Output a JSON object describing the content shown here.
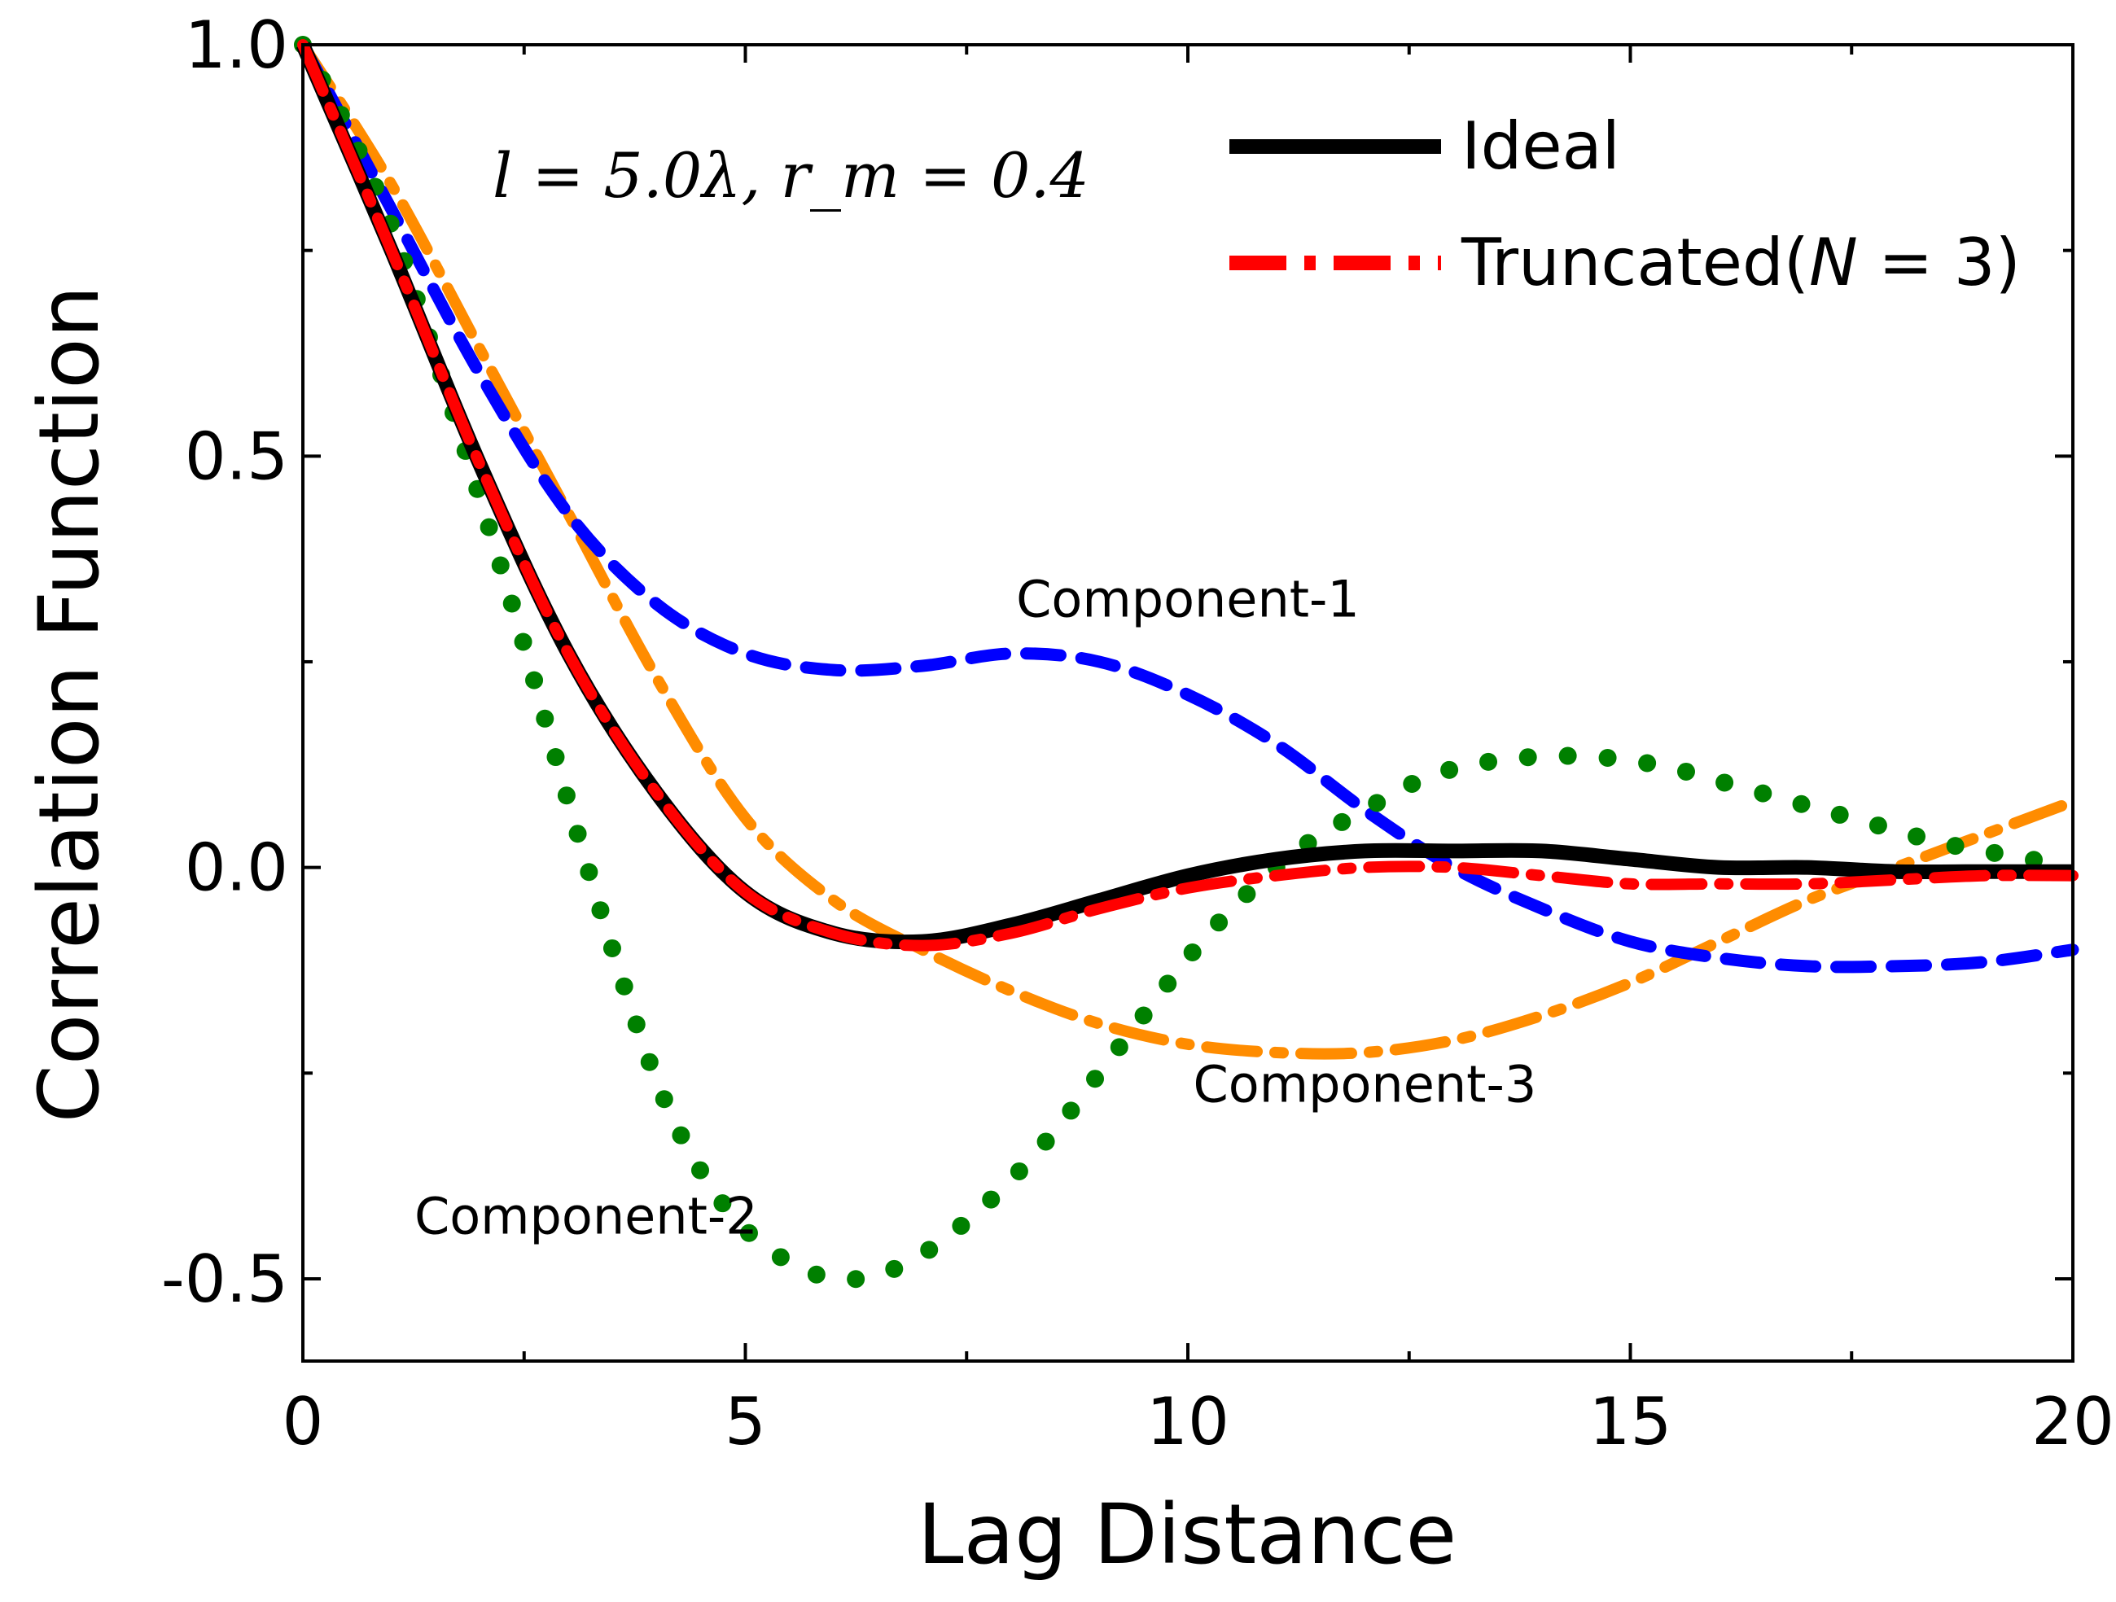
{
  "chart_data": {
    "type": "line",
    "xlabel": "Lag Distance",
    "ylabel": "Correlation Function",
    "xlim": [
      0,
      20
    ],
    "ylim": [
      -0.6,
      1.0
    ],
    "xticks": [
      0,
      5,
      10,
      15,
      20
    ],
    "xtick_labels": [
      "0",
      "5",
      "10",
      "15",
      "20"
    ],
    "yticks": [
      -0.5,
      0.0,
      0.5,
      1.0
    ],
    "ytick_labels": [
      "-0.5",
      "0.0",
      "0.5",
      "1.0"
    ],
    "grid": false,
    "legend_position": "top-right",
    "formula_annotation": "l = 5.0λ, r_m = 0.4",
    "series": [
      {
        "name": "Ideal",
        "color": "#000000",
        "style": "solid",
        "x": [
          0,
          1,
          2,
          3,
          4,
          5,
          6,
          7,
          8,
          9,
          10,
          11,
          12,
          13,
          14,
          15,
          16,
          17,
          18,
          19,
          20
        ],
        "y": [
          1.0,
          0.75,
          0.49,
          0.26,
          0.09,
          -0.03,
          -0.08,
          -0.09,
          -0.07,
          -0.04,
          -0.01,
          0.01,
          0.02,
          0.02,
          0.02,
          0.01,
          0.0,
          0.0,
          -0.005,
          -0.005,
          -0.005
        ]
      },
      {
        "name": "Truncated(N = 3)",
        "legend_prefix": "Truncated(",
        "legend_italic": "N",
        "legend_suffix": " = 3)",
        "color": "#ff0000",
        "style": "dashdot",
        "x": [
          0,
          1,
          2,
          3,
          4,
          5,
          6,
          7,
          8,
          9,
          10,
          11,
          12,
          13,
          14,
          15,
          16,
          17,
          18,
          19,
          20
        ],
        "y": [
          1.0,
          0.75,
          0.49,
          0.26,
          0.09,
          -0.03,
          -0.08,
          -0.095,
          -0.08,
          -0.05,
          -0.025,
          -0.01,
          0.0,
          0.0,
          -0.01,
          -0.02,
          -0.02,
          -0.02,
          -0.015,
          -0.01,
          -0.01
        ]
      },
      {
        "name": "Component-1",
        "color": "#0000ff",
        "style": "dashed",
        "x": [
          0,
          1,
          2,
          3,
          4,
          5,
          6,
          7,
          8,
          9,
          10,
          11,
          12,
          13,
          14,
          15,
          16,
          17,
          18,
          19,
          20
        ],
        "y": [
          1.0,
          0.8,
          0.6,
          0.43,
          0.32,
          0.26,
          0.24,
          0.245,
          0.26,
          0.25,
          0.21,
          0.15,
          0.07,
          0.0,
          -0.05,
          -0.09,
          -0.11,
          -0.12,
          -0.12,
          -0.115,
          -0.1
        ]
      },
      {
        "name": "Component-2",
        "color": "#008000",
        "style": "dotted",
        "x": [
          0,
          0.5,
          1,
          1.5,
          2,
          2.5,
          3,
          3.5,
          4,
          4.5,
          5,
          5.5,
          6,
          6.5,
          7,
          7.5,
          8,
          8.5,
          9,
          9.5,
          10,
          10.5,
          11,
          11.5,
          12,
          12.5,
          13,
          13.5,
          14,
          14.5,
          15,
          15.5,
          16,
          16.5,
          17,
          17.5,
          18,
          18.5,
          19,
          19.5,
          20
        ],
        "y": [
          1.0,
          0.9,
          0.78,
          0.62,
          0.45,
          0.27,
          0.08,
          -0.1,
          -0.26,
          -0.37,
          -0.44,
          -0.48,
          -0.5,
          -0.495,
          -0.47,
          -0.43,
          -0.38,
          -0.32,
          -0.25,
          -0.18,
          -0.11,
          -0.05,
          0.0,
          0.04,
          0.07,
          0.1,
          0.12,
          0.13,
          0.135,
          0.135,
          0.13,
          0.12,
          0.105,
          0.09,
          0.075,
          0.06,
          0.045,
          0.03,
          0.02,
          0.01,
          0.005
        ]
      },
      {
        "name": "Component-3",
        "color": "#ff8c00",
        "style": "dashdot",
        "x": [
          0,
          1,
          2,
          3,
          4,
          5,
          6,
          7,
          8,
          9,
          10,
          11,
          12,
          13,
          14,
          15,
          16,
          17,
          18,
          19,
          20
        ],
        "y": [
          1.0,
          0.83,
          0.63,
          0.43,
          0.23,
          0.06,
          -0.04,
          -0.1,
          -0.15,
          -0.19,
          -0.215,
          -0.225,
          -0.225,
          -0.21,
          -0.18,
          -0.14,
          -0.09,
          -0.04,
          0.0,
          0.04,
          0.08
        ]
      }
    ],
    "annotations": [
      {
        "text": "Component-1",
        "x": 10.0,
        "y": 0.305
      },
      {
        "text": "Component-2",
        "x": 3.2,
        "y": -0.445
      },
      {
        "text": "Component-3",
        "x": 12.0,
        "y": -0.285
      }
    ]
  }
}
